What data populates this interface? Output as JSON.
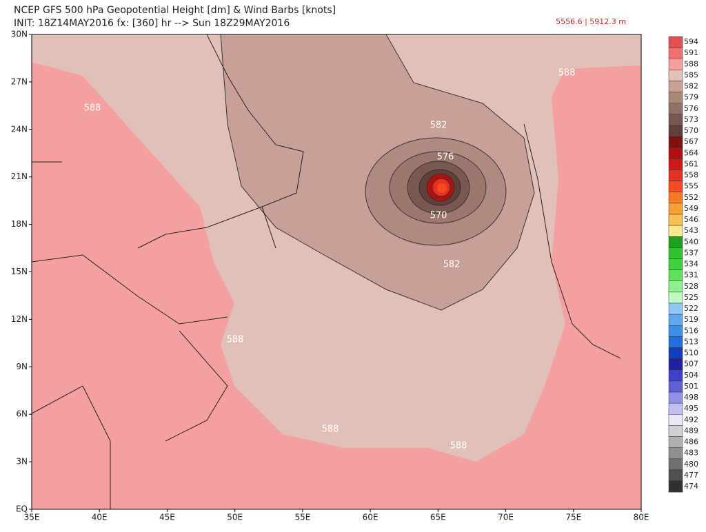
{
  "header": {
    "title": "NCEP GFS 500 hPa Geopotential Height [dm] & Wind Barbs [knots]",
    "subtitle": "INIT: 18Z14MAY2016 fx: [360] hr --> Sun 18Z29MAY2016",
    "range": "5556.6 | 5912.3 m"
  },
  "axes": {
    "lat": [
      "30N",
      "27N",
      "24N",
      "21N",
      "18N",
      "15N",
      "12N",
      "9N",
      "6N",
      "3N",
      "EQ"
    ],
    "lon": [
      "35E",
      "40E",
      "45E",
      "50E",
      "55E",
      "60E",
      "65E",
      "70E",
      "75E",
      "80E"
    ]
  },
  "contour_labels": [
    "588",
    "588",
    "588",
    "588",
    "588",
    "582",
    "582",
    "576",
    "570"
  ],
  "colorbar": {
    "levels": [
      "594",
      "591",
      "588",
      "585",
      "582",
      "579",
      "576",
      "573",
      "570",
      "567",
      "564",
      "561",
      "558",
      "555",
      "552",
      "549",
      "546",
      "543",
      "540",
      "537",
      "534",
      "531",
      "528",
      "525",
      "522",
      "519",
      "516",
      "513",
      "510",
      "507",
      "504",
      "501",
      "498",
      "495",
      "492",
      "489",
      "486",
      "483",
      "480",
      "477",
      "474"
    ],
    "colors": [
      "#e05050",
      "#f07070",
      "#f4a0a0",
      "#e0c0b8",
      "#c8a098",
      "#a88878",
      "#907068",
      "#785850",
      "#604038",
      "#801010",
      "#b01010",
      "#d01818",
      "#e83020",
      "#f84a20",
      "#f87a20",
      "#f8a030",
      "#f8c050",
      "#f8e890",
      "#20a020",
      "#30c030",
      "#40d040",
      "#60e060",
      "#90f090",
      "#c0f8c0",
      "#90c8f8",
      "#60a8f0",
      "#3890e8",
      "#2070e0",
      "#1040c0",
      "#2020a0",
      "#4040c8",
      "#6060d8",
      "#9090e8",
      "#c0c0f0",
      "#e8e8f8",
      "#d0d0d0",
      "#b0b0b0",
      "#909090",
      "#707070",
      "#505050",
      "#303030"
    ]
  }
}
